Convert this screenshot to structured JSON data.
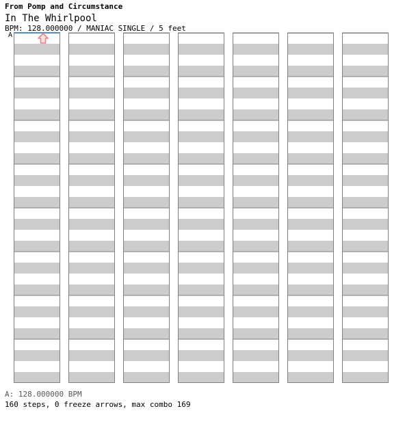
{
  "header": {
    "artist": "From Pomp and Circumstance",
    "title": "In The Whirlpool",
    "info": "BPM: 128.000000 / MANIAC SINGLE / 5 feet",
    "bpm_marker": "A"
  },
  "footer": {
    "bpm_legend": "A: 128.000000 BPM",
    "stats": "160 steps, 0 freeze arrows, max combo 169"
  },
  "colors": {
    "quarter": "#f08080",
    "quarter_fill": "#fde4e4",
    "eighth": "#3f8fe8",
    "eighth_fill": "#a8d0ff",
    "sixteenth": "#d070d8",
    "sixteenth_fill": "#f4c8f8",
    "stripe": "#cccccc",
    "marker": "#4f8fd0"
  },
  "chart_data": {
    "type": "step-chart",
    "columns": 7,
    "measures_per_column": 8,
    "lanes": [
      "left",
      "down",
      "up",
      "right"
    ],
    "notes": [
      {
        "m": 0,
        "b": 0,
        "lane": "up",
        "type": "quarter"
      }
    ]
  }
}
